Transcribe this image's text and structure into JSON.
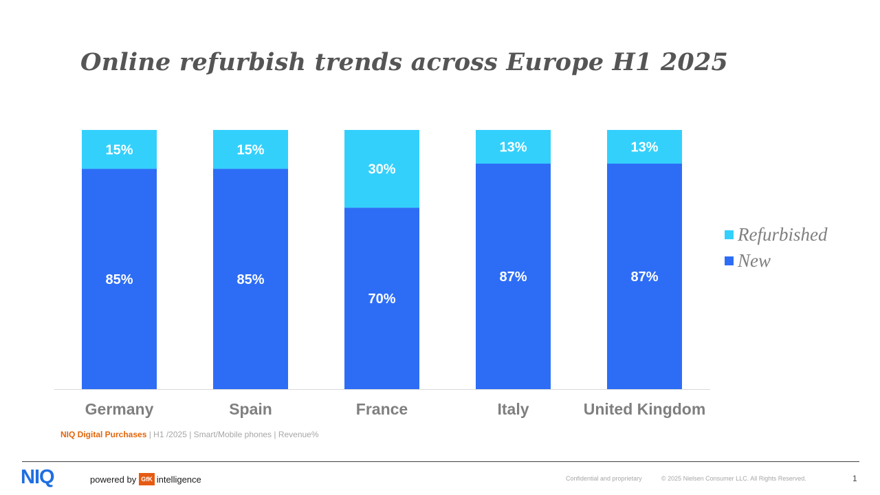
{
  "page": {
    "title": "Online refurbish trends across Europe H1 2025"
  },
  "chart_data": {
    "type": "bar",
    "stacked": true,
    "categories": [
      "Germany",
      "Spain",
      "France",
      "Italy",
      "United Kingdom"
    ],
    "series": [
      {
        "name": "New",
        "values": [
          85,
          85,
          70,
          87,
          87
        ],
        "labels": [
          "85%",
          "85%",
          "70%",
          "87%",
          "87%"
        ],
        "color": "#2d6df6"
      },
      {
        "name": "Refurbished",
        "values": [
          15,
          15,
          30,
          13,
          13
        ],
        "labels": [
          "15%",
          "15%",
          "30%",
          "13%",
          "13%"
        ],
        "color": "#33d0fc"
      }
    ],
    "ylim": [
      0,
      100
    ],
    "grid": false,
    "legend_placement": "right",
    "legend": [
      {
        "name": "Refurbished",
        "color": "#33d0fc"
      },
      {
        "name": "New",
        "color": "#2d6df6"
      }
    ],
    "title": "Online refurbish trends across Europe H1 2025",
    "xlabel": "",
    "ylabel": ""
  },
  "source": {
    "brand": "NIQ Digital Purchases",
    "rest": " | H1 /2025 | Smart/Mobile phones  | Revenue%"
  },
  "footer": {
    "logo": "NIQ",
    "powered_by": "powered by",
    "gfk": "GfK",
    "intelligence": "intelligence",
    "confidential": "Confidential and proprietary",
    "copyright": "© 2025 Nielsen Consumer LLC. All Rights Reserved.",
    "page_number": "1"
  },
  "colors": {
    "new": "#2d6df6",
    "refurbished": "#33d0fc",
    "title": "#555555",
    "axis_label": "#7f7f7f",
    "source_brand": "#e2650a",
    "logo": "#1f6fe0",
    "gfk": "#e55b13"
  }
}
